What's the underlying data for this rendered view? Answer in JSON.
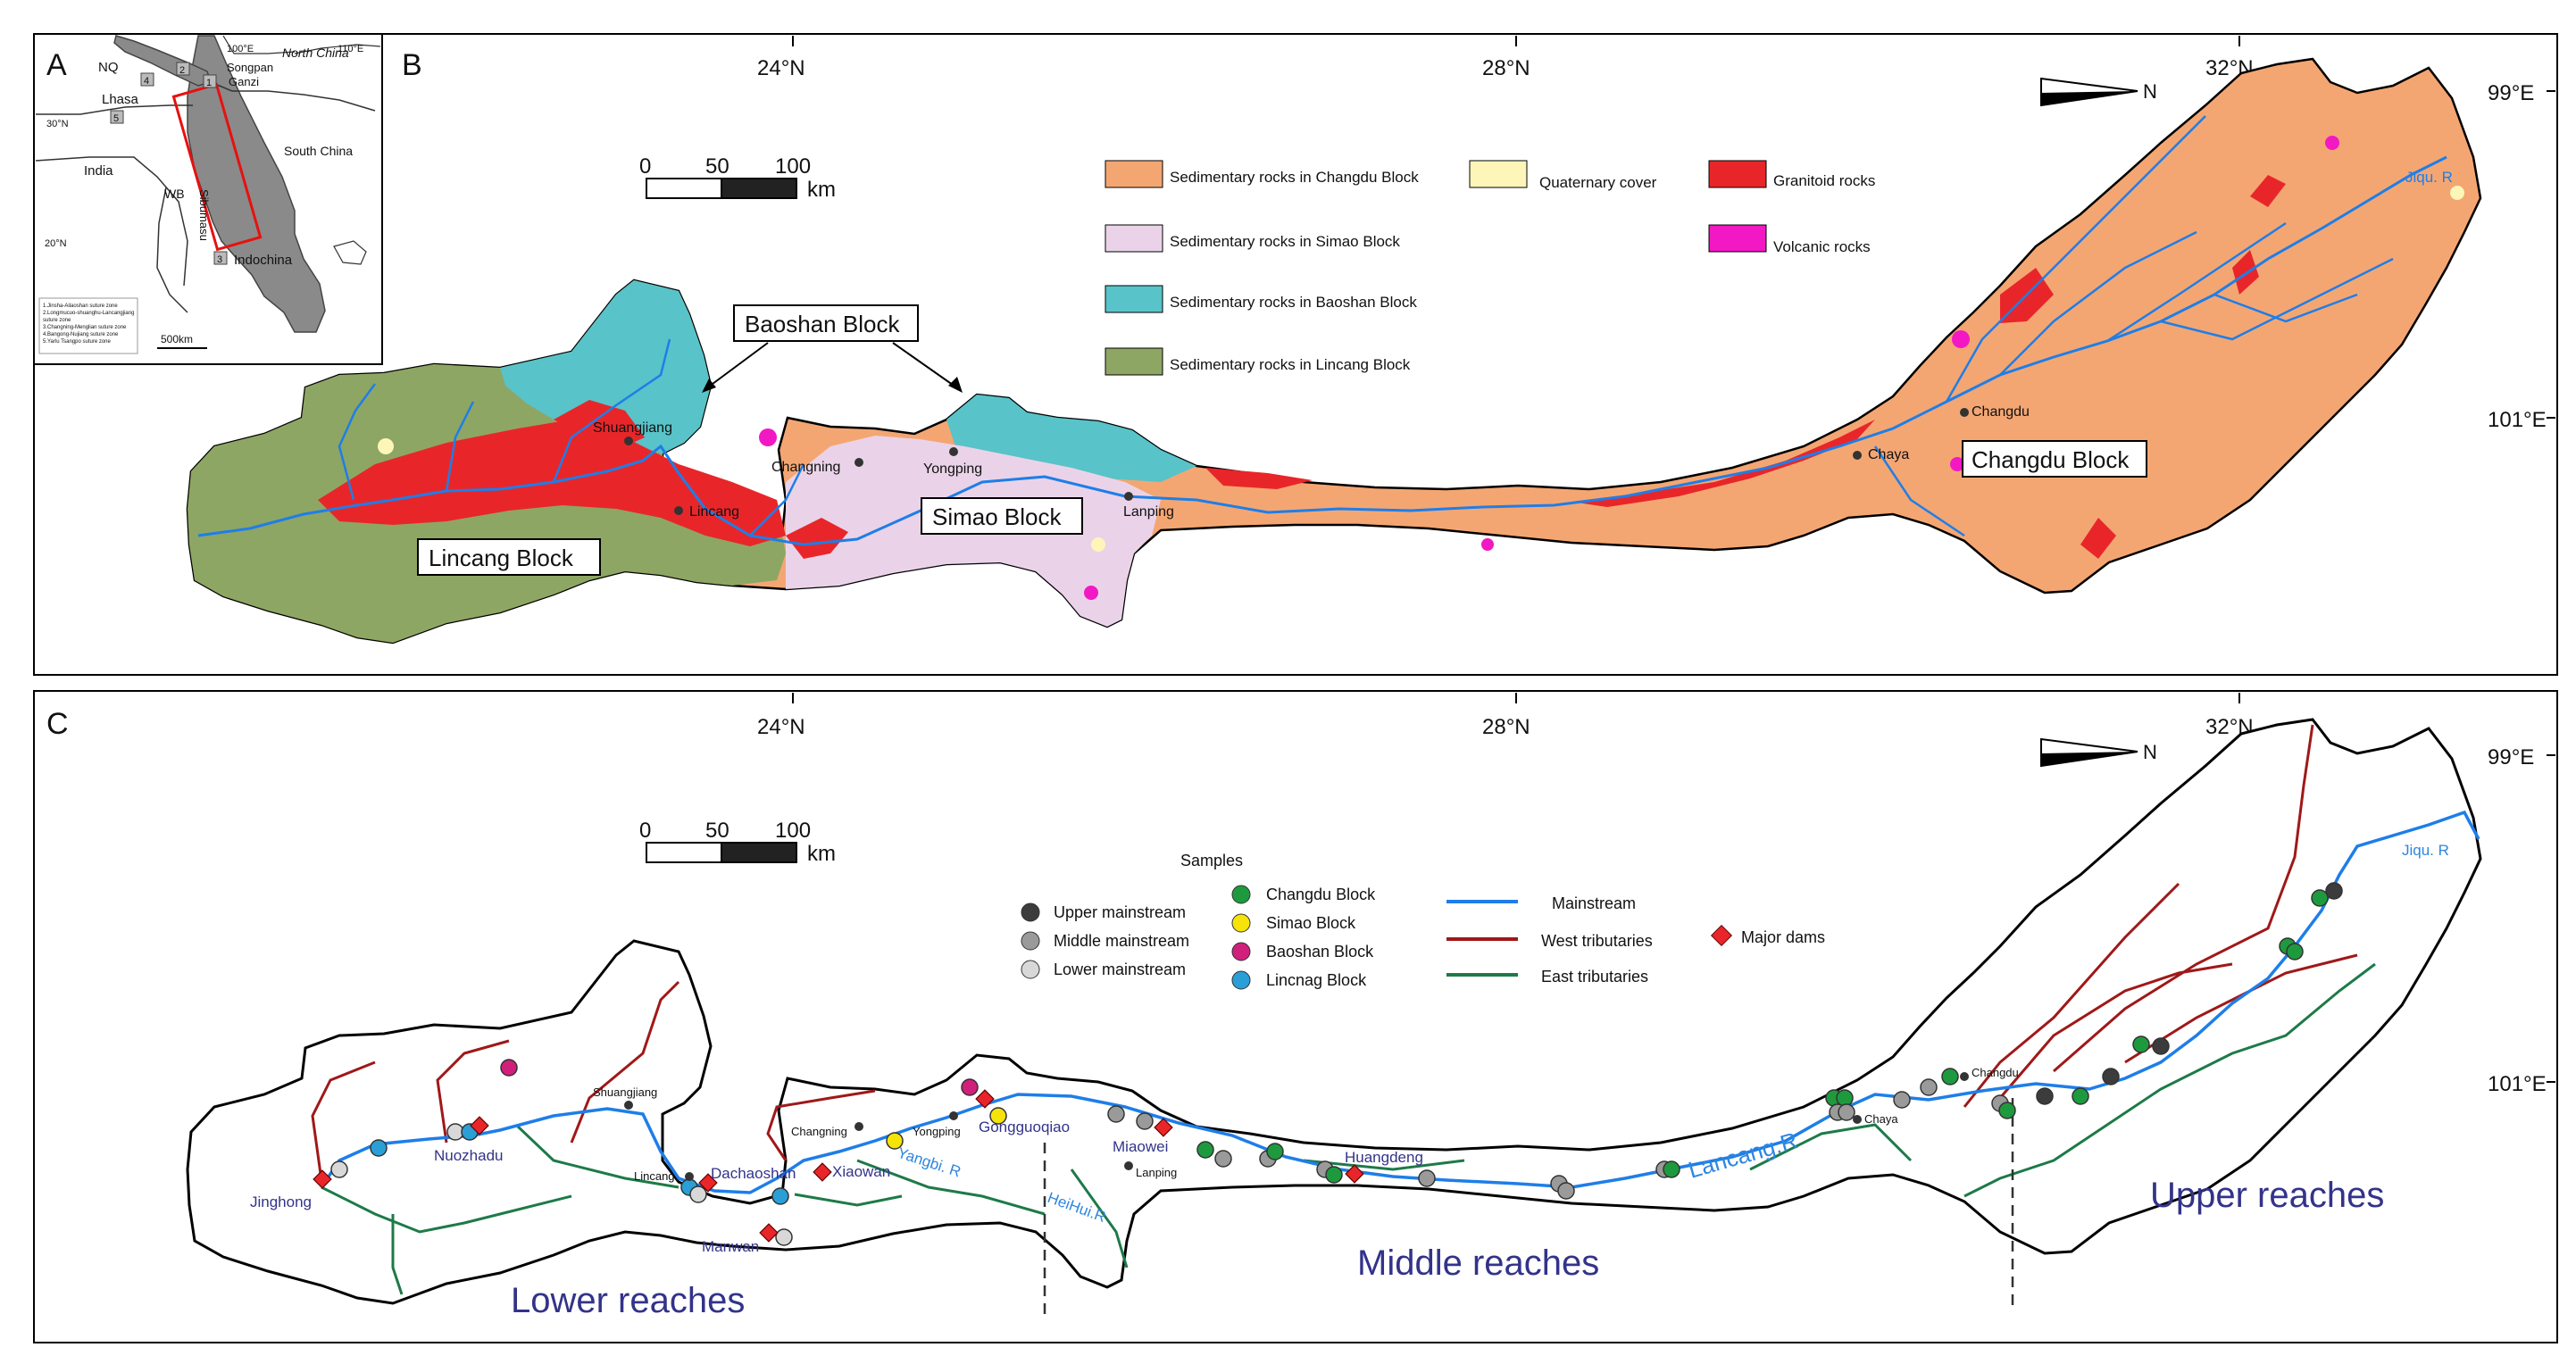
{
  "panelA": {
    "letter": "A",
    "labels": {
      "nq": "NQ",
      "lhasa": "Lhasa",
      "india": "India",
      "wb": "WB",
      "sibumasu": "Sibumasu",
      "songpan": "Songpan",
      "ganzi": "Ganzi",
      "north_china": "North China",
      "south_china": "South China",
      "indochina": "Indochina",
      "lon100": "100°E",
      "lon110": "110°E",
      "lat30": "30°N",
      "lat20": "20°N",
      "scale": "500km"
    },
    "sutures": [
      "1",
      "2",
      "3",
      "4",
      "5"
    ],
    "legend_lines": [
      "1.Jinsha-Ailaoshan suture zone",
      "2.Longmucuo-shuanghu-Lancangjiang",
      "  suture zone",
      "3.Changning-Menglian suture zone",
      "4.Bangong-Nujiang suture zone",
      "5.Yarlu Tsangpo suture zone"
    ]
  },
  "panelB": {
    "letter": "B",
    "lat_ticks": [
      "24°N",
      "28°N",
      "32°N"
    ],
    "lon_ticks": [
      "99°E",
      "101°E"
    ],
    "north": "N",
    "scale": {
      "v0": "0",
      "v1": "50",
      "v2": "100",
      "unit": "km"
    },
    "legend": [
      {
        "label": "Sedimentary rocks in Changdu Block",
        "color": "#f4a672"
      },
      {
        "label": "Sedimentary rocks in Simao Block",
        "color": "#ead3e8"
      },
      {
        "label": "Sedimentary rocks in Baoshan Block",
        "color": "#58c3c8"
      },
      {
        "label": "Sedimentary rocks  in Lincang Block",
        "color": "#8ea663"
      },
      {
        "label": "Quaternary cover",
        "color": "#fdf6b8"
      },
      {
        "label": "Granitoid rocks",
        "color": "#e8262a"
      },
      {
        "label": "Volcanic rocks",
        "color": "#f218c4"
      }
    ],
    "block_labels": [
      "Baoshan Block",
      "Simao Block",
      "Lincang Block",
      "Changdu Block"
    ],
    "towns": [
      "Shuangjiang",
      "Lincang",
      "Changning",
      "Yongping",
      "Lanping",
      "Chaya",
      "Changdu"
    ],
    "river": "Jiqu. R"
  },
  "panelC": {
    "letter": "C",
    "lat_ticks": [
      "24°N",
      "28°N",
      "32°N"
    ],
    "lon_ticks": [
      "99°E",
      "101°E"
    ],
    "north": "N",
    "scale": {
      "v0": "0",
      "v1": "50",
      "v2": "100",
      "unit": "km"
    },
    "samples_title": "Samples",
    "samples": [
      {
        "label": "Upper mainstream",
        "color": "#3c3c3c"
      },
      {
        "label": "Middle mainstream",
        "color": "#9a9a9a"
      },
      {
        "label": "Lower mainstream",
        "color": "#d8d8d8"
      },
      {
        "label": "Changdu Block",
        "color": "#1e9a3e"
      },
      {
        "label": "Simao Block",
        "color": "#f5e30a"
      },
      {
        "label": "Baoshan Block",
        "color": "#d0207c"
      },
      {
        "label": "Lincnag Block",
        "color": "#2a9fd6"
      }
    ],
    "lines": [
      {
        "label": "Mainstream",
        "color": "#1e7ee8"
      },
      {
        "label": "West tributaries",
        "color": "#a01818"
      },
      {
        "label": "East tributaries",
        "color": "#1d7a48"
      }
    ],
    "dams_label": "Major dams",
    "dams": [
      "Jinghong",
      "Nuozhadu",
      "Dachaoshan",
      "Manwan",
      "Xiaowan",
      "Gongguoqiao",
      "Miaowei",
      "Huangdeng"
    ],
    "towns": [
      "Shuangjiang",
      "Lincang",
      "Changning",
      "Yongping",
      "Lanping",
      "Chaya",
      "Changdu"
    ],
    "rivers": [
      "Yangbi. R",
      "HeiHui.R",
      "Lancang.R",
      "Jiqu. R"
    ],
    "reaches": [
      "Lower reaches",
      "Middle reaches",
      "Upper reaches"
    ]
  }
}
